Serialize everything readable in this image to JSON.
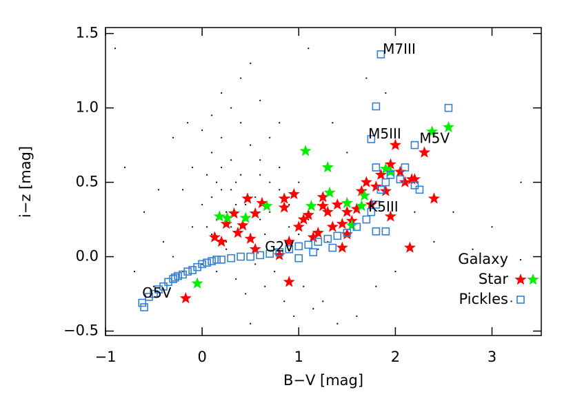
{
  "chart_data": {
    "type": "scatter",
    "xlabel": "B−V [mag]",
    "ylabel": "i−z [mag]",
    "xlim": [
      -1,
      3.51
    ],
    "ylim": [
      -0.53,
      1.54
    ],
    "xticks": [
      {
        "value": -1,
        "label": "−1"
      },
      0,
      1,
      2,
      3
    ],
    "yticks": [
      {
        "value": -0.5,
        "label": "−0.5"
      },
      {
        "value": 0,
        "label": "0.0"
      },
      0.5,
      {
        "value": 1,
        "label": "1.0"
      },
      1.5
    ],
    "legend": "lower right",
    "series": [
      {
        "name": "Galaxy",
        "color": "#000000",
        "marker": "dot",
        "x": [
          -0.6,
          -0.4,
          -0.2,
          -0.1,
          0.0,
          0.05,
          0.1,
          0.15,
          0.2,
          0.25,
          0.3,
          0.35,
          0.4,
          0.45,
          0.5,
          0.55,
          0.6,
          0.7,
          0.8,
          0.9,
          1.0,
          1.1,
          1.2,
          1.3,
          0.1,
          0.2,
          0.3,
          0.4,
          0.5,
          0.6,
          0.7,
          0.8,
          0.9,
          0.0,
          -0.2,
          -0.3,
          -0.5,
          0.15,
          0.25,
          0.35,
          0.45,
          0.55,
          0.65,
          0.75,
          0.85,
          0.95,
          1.05,
          1.15,
          1.25,
          1.4,
          1.6,
          1.8,
          2.0,
          2.4,
          2.8,
          3.2,
          -0.8,
          -0.7,
          0.3,
          0.4,
          0.2,
          0.1,
          0.5,
          0.6,
          0.0,
          0.3,
          0.8,
          1.0,
          -0.1,
          0.2,
          0.4,
          0.6,
          0.9,
          1.2,
          1.5,
          0.7,
          0.3,
          0.1,
          -0.3,
          0.5,
          1.9,
          2.6,
          3.0,
          3.3,
          -0.9,
          0.8,
          1.1,
          0.45,
          0.25,
          0.05,
          0.65,
          0.35,
          0.15,
          0.55,
          0.75,
          1.35,
          1.7,
          2.2,
          -0.45,
          -0.15
        ],
        "values": [
          0.3,
          0.1,
          0.45,
          0.2,
          0.35,
          0.55,
          0.4,
          0.25,
          0.6,
          0.3,
          0.45,
          0.5,
          0.2,
          0.35,
          0.15,
          0.4,
          0.25,
          0.3,
          0.1,
          0.2,
          0.15,
          0.25,
          0.05,
          0.1,
          0.7,
          0.8,
          0.65,
          0.9,
          0.75,
          0.55,
          0.5,
          0.45,
          0.35,
          -0.05,
          -0.1,
          0.0,
          -0.2,
          -0.1,
          0.05,
          -0.15,
          -0.25,
          -0.05,
          -0.2,
          -0.1,
          -0.3,
          -0.4,
          -0.2,
          -0.35,
          -0.3,
          -0.45,
          -0.4,
          -0.2,
          -0.1,
          0.1,
          0.05,
          -0.3,
          0.6,
          -0.1,
          1.0,
          1.2,
          1.1,
          0.95,
          1.3,
          1.05,
          0.85,
          0.2,
          0.6,
          0.5,
          0.6,
          0.45,
          0.55,
          0.65,
          0.4,
          0.35,
          0.7,
          0.8,
          0.3,
          0.15,
          0.8,
          -0.45,
          1.1,
          0.3,
          0.2,
          0.5,
          1.4,
          0.9,
          1.4,
          0.25,
          0.1,
          0.2,
          0.15,
          0.35,
          0.5,
          0.3,
          0.05,
          0.9,
          1.2,
          0.3,
          0.45,
          0.9
        ]
      },
      {
        "name": "Star",
        "color": "#ff0000",
        "marker": "star",
        "x": [
          -0.17,
          0.13,
          0.2,
          0.25,
          0.33,
          0.37,
          0.42,
          0.47,
          0.5,
          0.55,
          0.62,
          0.8,
          0.85,
          0.9,
          0.95,
          1.0,
          1.05,
          1.1,
          1.15,
          1.2,
          1.25,
          1.3,
          1.35,
          1.4,
          1.45,
          1.5,
          1.55,
          1.6,
          1.65,
          1.7,
          1.75,
          1.8,
          1.85,
          1.9,
          1.95,
          2.0,
          2.05,
          2.1,
          2.15,
          2.2,
          2.3,
          2.4,
          0.9,
          0.85,
          2.17,
          0.55,
          1.45,
          1.5,
          1.95,
          1.25
        ],
        "values": [
          -0.28,
          0.13,
          0.1,
          0.22,
          0.29,
          0.16,
          0.21,
          0.39,
          0.12,
          0.29,
          0.36,
          0.01,
          0.33,
          -0.17,
          0.42,
          0.2,
          0.25,
          0.28,
          0.13,
          0.16,
          0.4,
          0.3,
          0.2,
          0.35,
          0.22,
          0.3,
          0.24,
          0.32,
          0.44,
          0.5,
          0.35,
          0.47,
          0.55,
          0.44,
          0.62,
          0.75,
          0.57,
          0.5,
          0.06,
          0.52,
          0.7,
          0.39,
          0.1,
          0.39,
          0.52,
          0.05,
          0.06,
          0.15,
          0.27,
          0.34
        ]
      },
      {
        "color": "#00ee00",
        "marker": "star",
        "x": [
          -0.05,
          0.18,
          0.26,
          0.45,
          0.67,
          1.07,
          1.13,
          1.3,
          1.32,
          1.5,
          1.55,
          1.65,
          1.68,
          1.9,
          1.95,
          2.38,
          2.55
        ],
        "values": [
          -0.18,
          0.27,
          0.26,
          0.26,
          0.34,
          0.71,
          0.34,
          0.6,
          0.43,
          0.36,
          0.21,
          0.34,
          0.41,
          0.59,
          0.57,
          0.84,
          0.87
        ]
      },
      {
        "name": "Pickles",
        "color": "#2f7fd8",
        "marker": "square",
        "x": [
          -0.62,
          -0.6,
          -0.55,
          -0.5,
          -0.45,
          -0.4,
          -0.35,
          -0.3,
          -0.28,
          -0.25,
          -0.2,
          -0.15,
          -0.1,
          -0.05,
          0.0,
          0.05,
          0.1,
          0.15,
          0.2,
          0.3,
          0.4,
          0.5,
          0.6,
          0.7,
          0.8,
          0.9,
          1.0,
          1.1,
          1.2,
          1.3,
          1.4,
          1.5,
          1.6,
          1.7,
          1.75,
          1.8,
          1.85,
          1.9,
          1.95,
          2.1,
          2.2,
          2.25,
          1.8,
          1.9,
          1.75,
          1.8,
          1.85,
          2.2,
          2.55,
          1.0,
          1.15,
          1.35,
          1.8,
          2.05
        ],
        "values": [
          -0.31,
          -0.34,
          -0.27,
          -0.25,
          -0.22,
          -0.2,
          -0.17,
          -0.15,
          -0.14,
          -0.13,
          -0.12,
          -0.1,
          -0.09,
          -0.07,
          -0.05,
          -0.04,
          -0.03,
          -0.02,
          -0.02,
          -0.01,
          0.0,
          0.0,
          0.01,
          0.02,
          0.03,
          0.05,
          0.07,
          0.08,
          0.1,
          0.12,
          0.14,
          0.16,
          0.2,
          0.25,
          0.3,
          0.35,
          0.45,
          0.5,
          0.55,
          0.6,
          0.48,
          0.45,
          0.17,
          0.17,
          0.79,
          1.01,
          1.36,
          0.75,
          1.0,
          -0.01,
          0.03,
          0.06,
          0.6,
          0.52
        ]
      }
    ],
    "annotations": [
      {
        "text": "O5V",
        "x": -0.62,
        "y": -0.25
      },
      {
        "text": "G2V",
        "x": 0.65,
        "y": 0.06
      },
      {
        "text": "K5III",
        "x": 1.72,
        "y": 0.33
      },
      {
        "text": "M5III",
        "x": 1.72,
        "y": 0.82
      },
      {
        "text": "M5V",
        "x": 2.25,
        "y": 0.79
      },
      {
        "text": "M7III",
        "x": 1.87,
        "y": 1.39
      }
    ]
  }
}
